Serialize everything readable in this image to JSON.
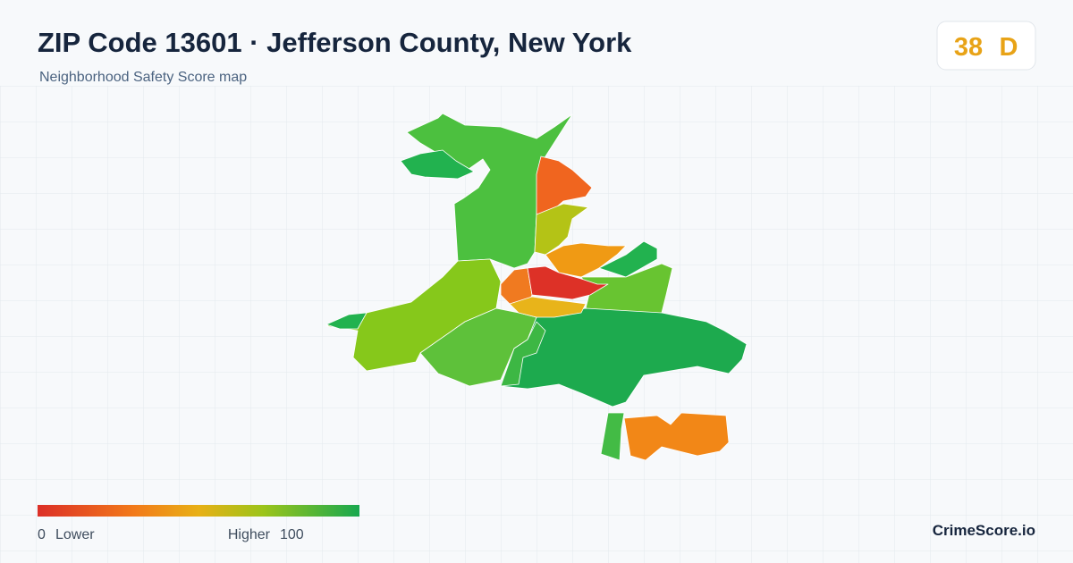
{
  "header": {
    "title": "ZIP Code 13601 · Jefferson County, New York",
    "subtitle": "Neighborhood Safety Score map"
  },
  "score": {
    "value": 38,
    "grade": "D"
  },
  "legend": {
    "min": 0,
    "min_label": "Lower",
    "max_label": "Higher",
    "max": 100
  },
  "brand": "CrimeScore.io"
}
